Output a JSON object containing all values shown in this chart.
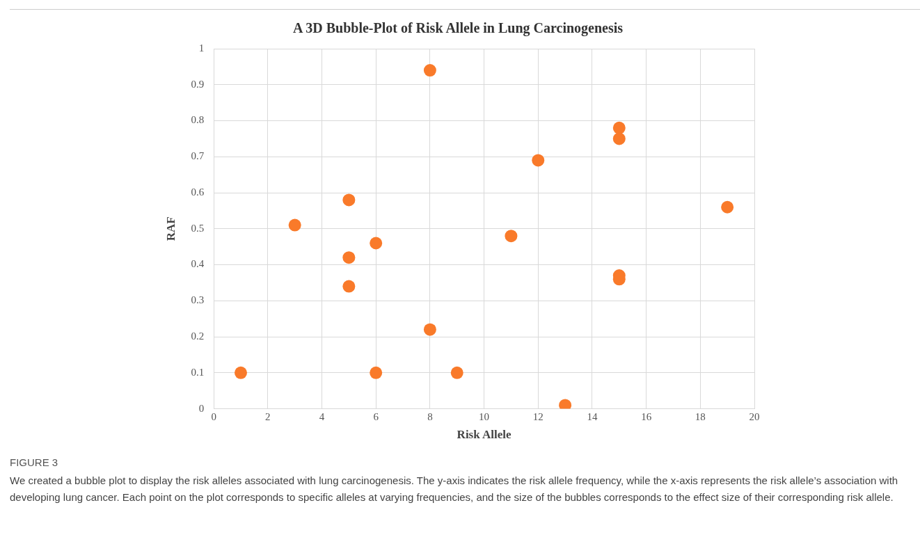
{
  "chart_data": {
    "type": "bubble",
    "title": "A 3D Bubble-Plot of Risk Allele in Lung Carcinogenesis",
    "xlabel": "Risk Allele",
    "ylabel": "RAF",
    "annotations": [
      "FIGURE 3",
      "We created a bubble plot to display the risk alleles associated with lung carcinogenesis. The y-axis indicates the risk allele frequency, while the x-axis represents the risk allele’s association with developing lung cancer. Each point on the plot corresponds to specific alleles at varying frequencies, and the size of the bubbles corresponds to the effect size of their corresponding risk allele."
    ],
    "x": [
      1,
      3,
      5,
      5,
      5,
      6,
      6,
      8,
      8,
      9,
      11,
      12,
      13,
      15,
      15,
      15,
      15,
      19
    ],
    "values": [
      0.1,
      0.51,
      0.58,
      0.42,
      0.34,
      0.46,
      0.1,
      0.94,
      0.22,
      0.1,
      0.48,
      0.69,
      0.01,
      0.78,
      0.75,
      0.37,
      0.36,
      0.56
    ],
    "sizes": [
      1,
      1,
      1,
      1,
      1,
      1,
      1,
      1,
      1,
      1,
      1,
      1,
      1,
      1,
      1,
      1,
      1,
      1
    ],
    "color": "#f97a2a",
    "marker": "circle",
    "xlim": [
      0,
      20
    ],
    "xticks": [
      0,
      2,
      4,
      6,
      8,
      10,
      12,
      14,
      16,
      18,
      20
    ],
    "ylim": [
      0,
      1
    ],
    "yticks": [
      0,
      0.1,
      0.2,
      0.3,
      0.4,
      0.5,
      0.6,
      0.7,
      0.8,
      0.9,
      1
    ],
    "grid": true
  }
}
